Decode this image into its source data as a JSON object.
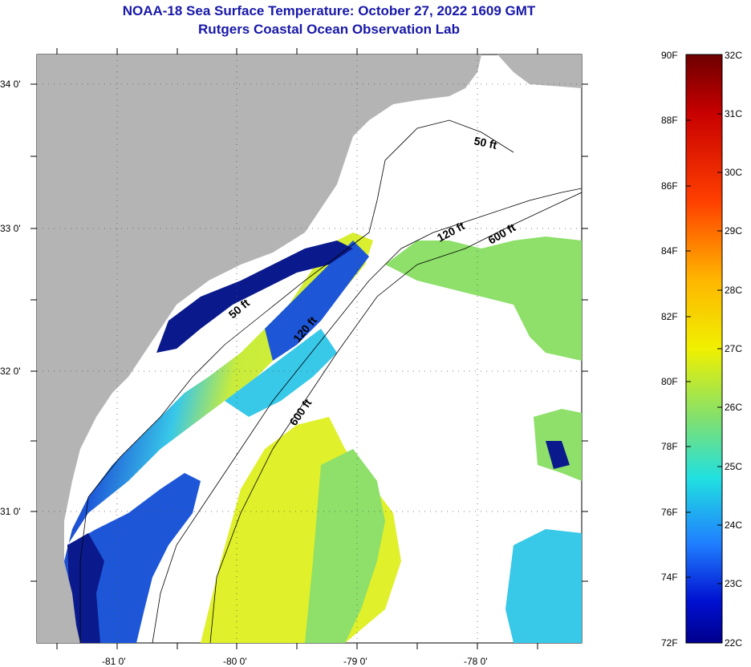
{
  "title": {
    "line1": "NOAA-18 Sea Surface Temperature:  October 27, 2022 1609 GMT",
    "line2": "Rutgers Coastal Ocean Observation Lab"
  },
  "axes": {
    "lat_labels": [
      "34 0'",
      "33 0'",
      "32 0'",
      "31 0'"
    ],
    "lon_labels": [
      "-81 0'",
      "-80 0'",
      "-79 0'",
      "-78 0'"
    ]
  },
  "contours": {
    "c50a": "50 ft",
    "c50b": "50 ft",
    "c120a": "120 ft",
    "c120b": "120 ft",
    "c600a": "600 ft",
    "c600b": "600 ft"
  },
  "colorbar": {
    "f_labels": [
      "90F",
      "88F",
      "86F",
      "84F",
      "82F",
      "80F",
      "78F",
      "76F",
      "74F",
      "72F"
    ],
    "c_labels": [
      "32C",
      "31C",
      "30C",
      "29C",
      "28C",
      "27C",
      "26C",
      "25C",
      "24C",
      "23C",
      "22C"
    ]
  },
  "colors": {
    "land": "#b4b4b4",
    "cloud": "#ffffff",
    "deep_blue": "#0a1a8c",
    "blue": "#1e56d8",
    "cyan": "#38c8e8",
    "green": "#8ee06a",
    "yellow": "#e0f02a"
  }
}
